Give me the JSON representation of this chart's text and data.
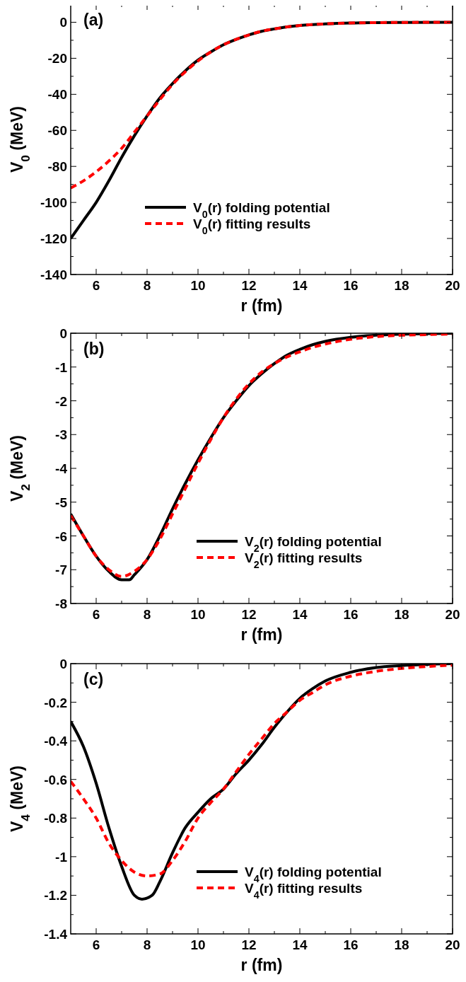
{
  "chart_data": [
    {
      "type": "line",
      "xlabel": "r (fm)",
      "ylabel": "V$_{0}$ (MeV)",
      "annotations": [
        "(a)"
      ],
      "xlim": [
        5,
        20
      ],
      "ylim": [
        -140,
        10
      ],
      "xticks": [
        6,
        {
          "value": 7,
          "label": null
        },
        8,
        {
          "value": 9,
          "label": null
        },
        10,
        {
          "value": 11,
          "label": null
        },
        12,
        {
          "value": 13,
          "label": null
        },
        14,
        {
          "value": 15,
          "label": null
        },
        16,
        {
          "value": 17,
          "label": null
        },
        18,
        {
          "value": 19,
          "label": null
        },
        20
      ],
      "yticks": [
        -140,
        {
          "value": -130,
          "label": null
        },
        -120,
        {
          "value": -110,
          "label": null
        },
        -100,
        {
          "value": -90,
          "label": null
        },
        -80,
        {
          "value": -70,
          "label": null
        },
        -60,
        {
          "value": -50,
          "label": null
        },
        -40,
        {
          "value": -30,
          "label": null
        },
        -20,
        {
          "value": -10,
          "label": null
        },
        0
      ],
      "grid": false,
      "legend": "bottom",
      "marker": "none",
      "series": [
        {
          "name": "V$_{0}$(r) folding potential",
          "color": "#000000",
          "line_style": "solid",
          "x": [
            5,
            5.5,
            6,
            6.5,
            7,
            7.5,
            8,
            8.5,
            9,
            9.5,
            10,
            10.5,
            11,
            11.5,
            12,
            12.5,
            13,
            13.5,
            14,
            15,
            16,
            17,
            18,
            20
          ],
          "values": [
            -120,
            -110,
            -100,
            -88,
            -75,
            -63,
            -52,
            -42,
            -34,
            -27,
            -21,
            -16.5,
            -12.5,
            -9.5,
            -7,
            -5,
            -3.7,
            -2.6,
            -1.8,
            -0.9,
            -0.4,
            -0.2,
            -0.1,
            0
          ]
        },
        {
          "name": "V$_{0}$(r) fitting results",
          "color": "#ff0000",
          "line_style": "dashed",
          "x": [
            5,
            5.5,
            6,
            6.5,
            7,
            7.5,
            8,
            8.5,
            9,
            9.5,
            10,
            10.5,
            11,
            11.5,
            12,
            12.5,
            13,
            13.5,
            14,
            15,
            16,
            17,
            18,
            20
          ],
          "values": [
            -92,
            -88,
            -83,
            -77,
            -70,
            -61,
            -52,
            -43,
            -34.5,
            -27.5,
            -21.5,
            -16.5,
            -12.5,
            -9.5,
            -7,
            -5,
            -3.7,
            -2.6,
            -1.8,
            -0.9,
            -0.4,
            -0.2,
            -0.1,
            0
          ]
        }
      ]
    },
    {
      "type": "line",
      "xlabel": "r (fm)",
      "ylabel": "V$_{2}$ (MeV)",
      "annotations": [
        "(b)"
      ],
      "xlim": [
        5,
        20
      ],
      "ylim": [
        -8,
        0
      ],
      "xticks": [
        6,
        {
          "value": 7,
          "label": null
        },
        8,
        {
          "value": 9,
          "label": null
        },
        10,
        {
          "value": 11,
          "label": null
        },
        12,
        {
          "value": 13,
          "label": null
        },
        14,
        {
          "value": 15,
          "label": null
        },
        16,
        {
          "value": 17,
          "label": null
        },
        18,
        {
          "value": 19,
          "label": null
        },
        20
      ],
      "yticks": [
        -8,
        {
          "value": -7.5,
          "label": null
        },
        -7,
        {
          "value": -6.5,
          "label": null
        },
        -6,
        {
          "value": -5.5,
          "label": null
        },
        -5,
        {
          "value": -4.5,
          "label": null
        },
        -4,
        {
          "value": -3.5,
          "label": null
        },
        -3,
        {
          "value": -2.5,
          "label": null
        },
        -2,
        {
          "value": -1.5,
          "label": null
        },
        -1,
        {
          "value": -0.5,
          "label": null
        },
        0
      ],
      "grid": false,
      "legend": "bottom right",
      "marker": "none",
      "series": [
        {
          "name": "V$_{2}$(r) folding potential",
          "color": "#000000",
          "line_style": "solid",
          "x": [
            5,
            5.5,
            6,
            6.5,
            7,
            7.3,
            7.5,
            8,
            8.5,
            9,
            9.5,
            10,
            10.5,
            11,
            11.5,
            12,
            12.5,
            13,
            13.5,
            14,
            14.5,
            15,
            16,
            17,
            18,
            20
          ],
          "values": [
            -5.35,
            -6.0,
            -6.6,
            -7.05,
            -7.3,
            -7.3,
            -7.15,
            -6.7,
            -6.0,
            -5.2,
            -4.45,
            -3.75,
            -3.1,
            -2.5,
            -2.0,
            -1.55,
            -1.2,
            -0.9,
            -0.65,
            -0.48,
            -0.34,
            -0.24,
            -0.12,
            -0.06,
            -0.03,
            0
          ]
        },
        {
          "name": "V$_{2}$(r) fitting results",
          "color": "#ff0000",
          "line_style": "dashed",
          "x": [
            5,
            5.5,
            6,
            6.5,
            7,
            7.5,
            8,
            8.5,
            9,
            9.5,
            10,
            10.5,
            11,
            11.5,
            12,
            12.5,
            13,
            13.5,
            14,
            14.5,
            15,
            16,
            17,
            18,
            19,
            20
          ],
          "values": [
            -5.4,
            -6.0,
            -6.6,
            -7.0,
            -7.2,
            -7.05,
            -6.7,
            -6.1,
            -5.35,
            -4.6,
            -3.85,
            -3.15,
            -2.5,
            -1.95,
            -1.5,
            -1.15,
            -0.9,
            -0.7,
            -0.55,
            -0.42,
            -0.32,
            -0.18,
            -0.1,
            -0.06,
            -0.04,
            -0.02
          ]
        }
      ]
    },
    {
      "type": "line",
      "xlabel": "r (fm)",
      "ylabel": "V$_{4}$ (MeV)",
      "annotations": [
        "(c)"
      ],
      "xlim": [
        5,
        20
      ],
      "ylim": [
        -1.4,
        0
      ],
      "xticks": [
        6,
        {
          "value": 7,
          "label": null
        },
        8,
        {
          "value": 9,
          "label": null
        },
        10,
        {
          "value": 11,
          "label": null
        },
        12,
        {
          "value": 13,
          "label": null
        },
        14,
        {
          "value": 15,
          "label": null
        },
        16,
        {
          "value": 17,
          "label": null
        },
        18,
        {
          "value": 19,
          "label": null
        },
        20
      ],
      "yticks": [
        -1.4,
        {
          "value": -1.3,
          "label": null
        },
        -1.2,
        {
          "value": -1.1,
          "label": null
        },
        -1,
        {
          "value": -0.9,
          "label": null
        },
        -0.8,
        {
          "value": -0.7,
          "label": null
        },
        -0.6,
        {
          "value": -0.5,
          "label": null
        },
        -0.4,
        {
          "value": -0.3,
          "label": null
        },
        -0.2,
        {
          "value": -0.1,
          "label": null
        },
        0
      ],
      "grid": false,
      "legend": "bottom right",
      "marker": "none",
      "series": [
        {
          "name": "V$_{4}$(r) folding potential",
          "color": "#000000",
          "line_style": "solid",
          "x": [
            5,
            5.5,
            6,
            6.5,
            7,
            7.5,
            7.8,
            8.2,
            8.5,
            9,
            9.5,
            10,
            10.5,
            11,
            11.5,
            12,
            12.5,
            13,
            13.5,
            14,
            14.5,
            15,
            16,
            17,
            18,
            20
          ],
          "values": [
            -0.3,
            -0.43,
            -0.62,
            -0.85,
            -1.05,
            -1.2,
            -1.22,
            -1.2,
            -1.13,
            -0.98,
            -0.85,
            -0.77,
            -0.7,
            -0.65,
            -0.57,
            -0.5,
            -0.42,
            -0.33,
            -0.25,
            -0.18,
            -0.13,
            -0.09,
            -0.045,
            -0.02,
            -0.01,
            0
          ]
        },
        {
          "name": "V$_{4}$(r) fitting results",
          "color": "#ff0000",
          "line_style": "dashed",
          "x": [
            5,
            5.5,
            6,
            6.5,
            7,
            7.5,
            8,
            8.5,
            9,
            9.5,
            10,
            10.5,
            11,
            11.5,
            12,
            12.5,
            13,
            13.5,
            14,
            14.5,
            15,
            16,
            17,
            18,
            19,
            20
          ],
          "values": [
            -0.61,
            -0.7,
            -0.8,
            -0.93,
            -1.02,
            -1.08,
            -1.1,
            -1.09,
            -1.02,
            -0.92,
            -0.8,
            -0.72,
            -0.65,
            -0.56,
            -0.47,
            -0.39,
            -0.31,
            -0.25,
            -0.19,
            -0.15,
            -0.11,
            -0.065,
            -0.04,
            -0.025,
            -0.015,
            -0.008
          ]
        }
      ]
    }
  ]
}
